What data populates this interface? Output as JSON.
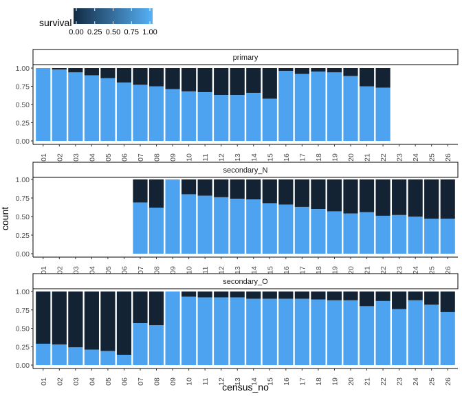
{
  "chart_data": {
    "type": "bar",
    "stacked": true,
    "normalized": true,
    "xlabel": "census_no",
    "ylabel": "count",
    "ylim": [
      0,
      1
    ],
    "yticks": [
      "0.00",
      "0.25",
      "0.50",
      "0.75",
      "1.00"
    ],
    "categories": [
      "01",
      "02",
      "03",
      "04",
      "05",
      "06",
      "07",
      "08",
      "09",
      "10",
      "11",
      "12",
      "13",
      "14",
      "15",
      "16",
      "17",
      "18",
      "19",
      "20",
      "21",
      "22",
      "23",
      "24",
      "25",
      "26"
    ],
    "legend": {
      "title": "survival",
      "type": "colorbar",
      "position": "top-left",
      "ticks": [
        "0.00",
        "0.25",
        "0.50",
        "0.75",
        "1.00"
      ],
      "low_color": "#132B43",
      "high_color": "#56B1F7"
    },
    "colors": {
      "survived": "#4da3f0",
      "died": "#132333"
    },
    "panels": [
      {
        "strip": "primary",
        "survival_share": [
          1.0,
          0.98,
          0.94,
          0.9,
          0.86,
          0.8,
          0.77,
          0.75,
          0.71,
          0.68,
          0.67,
          0.63,
          0.63,
          0.66,
          0.58,
          0.96,
          0.92,
          0.95,
          0.94,
          0.89,
          0.75,
          0.73,
          null,
          null,
          null,
          null
        ]
      },
      {
        "strip": "secondary_N",
        "survival_share": [
          null,
          null,
          null,
          null,
          null,
          null,
          0.69,
          0.62,
          1.0,
          0.8,
          0.78,
          0.76,
          0.74,
          0.73,
          0.68,
          0.66,
          0.63,
          0.6,
          0.57,
          0.54,
          0.56,
          0.51,
          0.52,
          0.5,
          0.47,
          0.47
        ]
      },
      {
        "strip": "secondary_O",
        "survival_share": [
          0.29,
          0.28,
          0.24,
          0.21,
          0.19,
          0.14,
          0.57,
          0.54,
          1.0,
          0.93,
          0.92,
          0.92,
          0.92,
          0.9,
          0.9,
          0.9,
          0.9,
          0.89,
          0.88,
          0.88,
          0.8,
          0.87,
          0.76,
          0.88,
          0.82,
          0.72
        ]
      }
    ]
  }
}
